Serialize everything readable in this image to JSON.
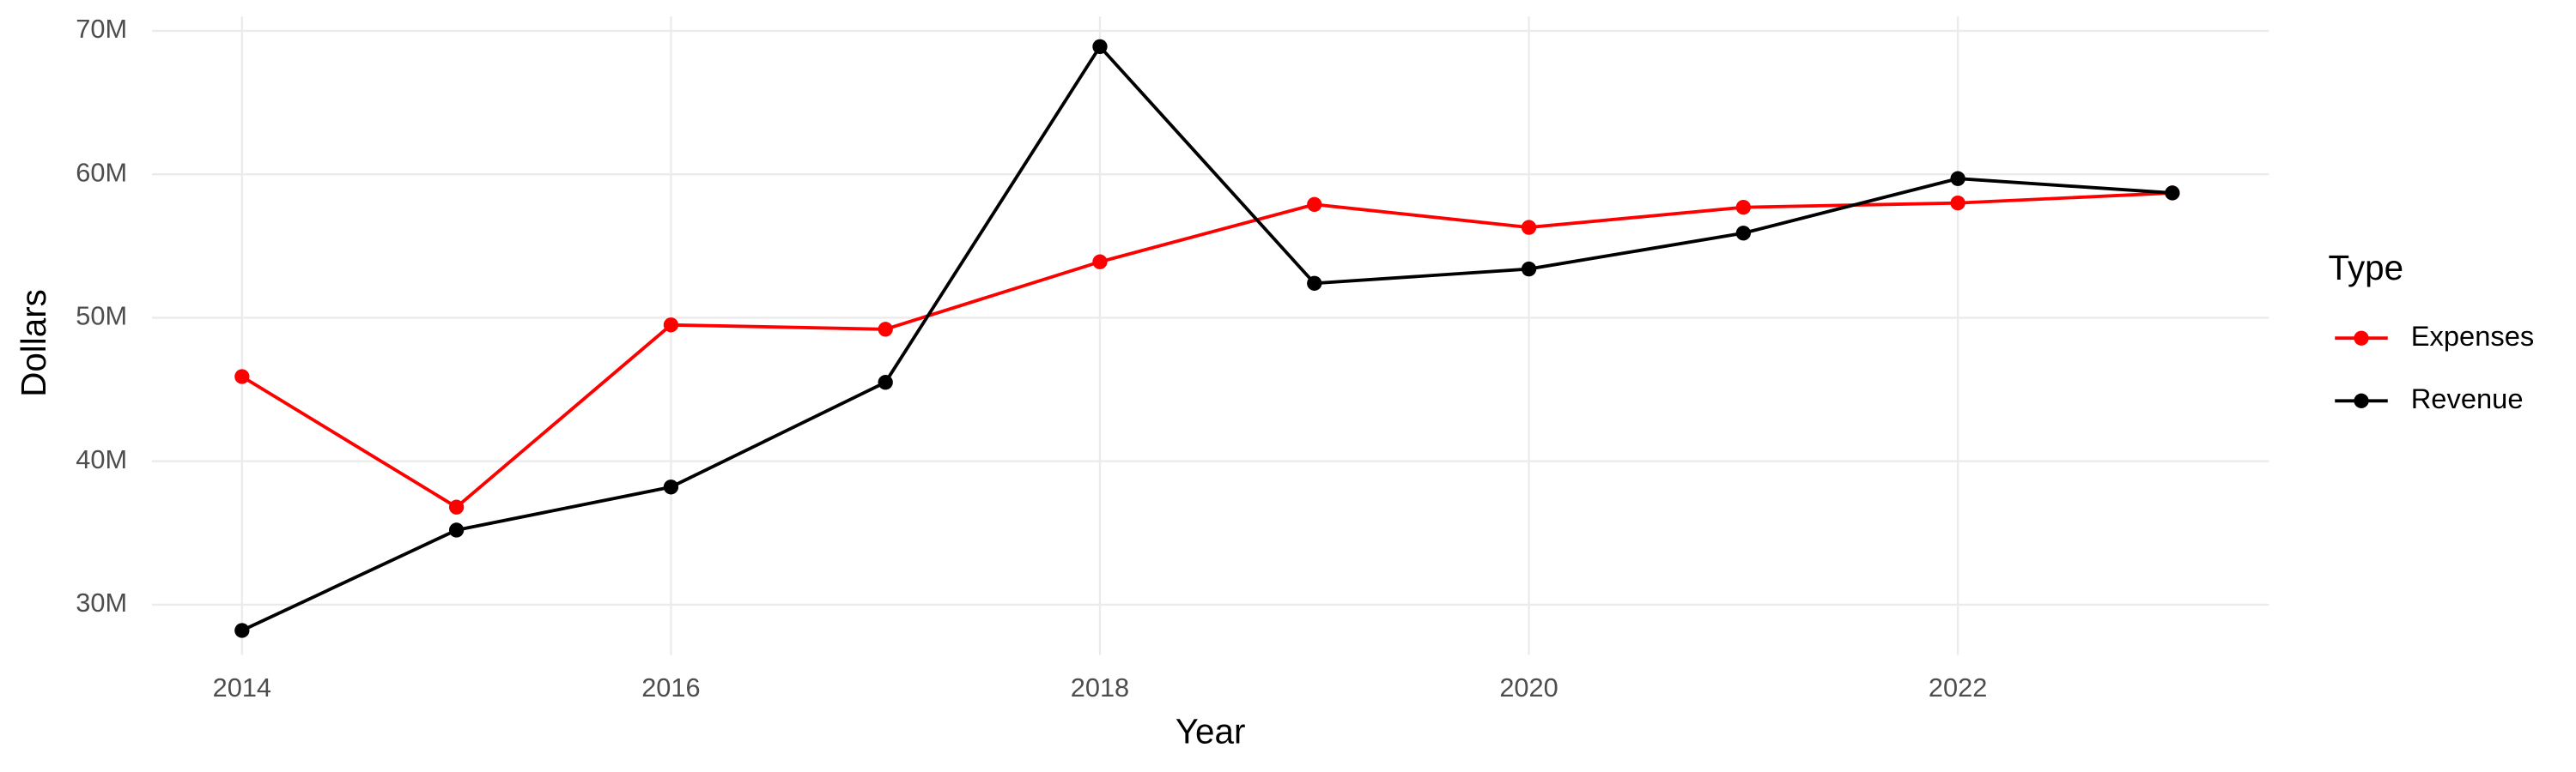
{
  "chart_data": {
    "type": "line",
    "x_label": "Year",
    "y_label": "Dollars",
    "legend_title": "Type",
    "x": [
      2014,
      2015,
      2016,
      2017,
      2018,
      2019,
      2020,
      2021,
      2022,
      2023
    ],
    "series": [
      {
        "name": "Expenses",
        "color": "#ff0000",
        "values": [
          45900000,
          36800000,
          49500000,
          49200000,
          53900000,
          57900000,
          56300000,
          57700000,
          58000000,
          58700000
        ]
      },
      {
        "name": "Revenue",
        "color": "#000000",
        "values": [
          28200000,
          35200000,
          38200000,
          45500000,
          68900000,
          52400000,
          53400000,
          55900000,
          59700000,
          58700000
        ]
      }
    ],
    "xlim": [
      2013.58,
      2023.45
    ],
    "ylim": [
      26500000,
      71000000
    ],
    "xticks": [
      2014,
      2016,
      2018,
      2020,
      2022
    ],
    "yticks": [
      {
        "value": 30000000,
        "label": "30M"
      },
      {
        "value": 40000000,
        "label": "40M"
      },
      {
        "value": 50000000,
        "label": "50M"
      },
      {
        "value": 60000000,
        "label": "60M"
      },
      {
        "value": 70000000,
        "label": "70M"
      }
    ],
    "grid": true,
    "legend": "right"
  }
}
